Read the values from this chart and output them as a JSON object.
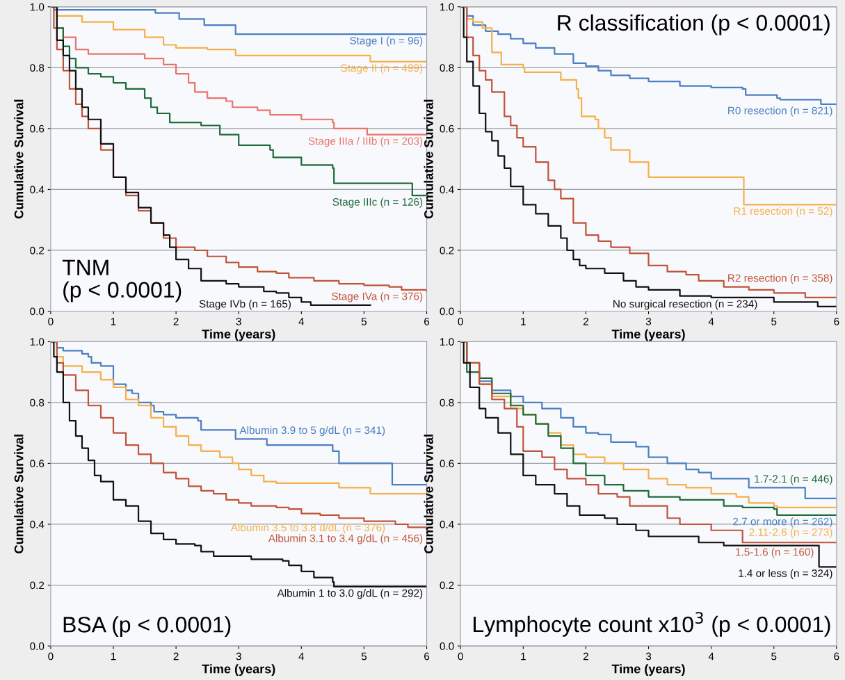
{
  "chart_data": [
    {
      "type": "step",
      "title": "TNM\n(p < 0.0001)",
      "xlabel": "Time (years)",
      "ylabel": "Cumulative Survival",
      "xlim": [
        0,
        6
      ],
      "ylim": [
        0,
        1
      ],
      "xticks": [
        0,
        1,
        2,
        3,
        4,
        5,
        6
      ],
      "yticks": [
        {
          "value": 0,
          "label": "0.0"
        },
        {
          "value": 0.2,
          "label": "0.2"
        },
        {
          "value": 0.4,
          "label": "0.4"
        },
        {
          "value": 0.6,
          "label": "0.6"
        },
        {
          "value": 0.8,
          "label": "0.8"
        },
        {
          "value": 1,
          "label": "1.0"
        }
      ],
      "grid": "y",
      "series": [
        {
          "name": "Stage I (n = 96)",
          "color": "#4a7fc1",
          "x": [
            0,
            0.05,
            1.67,
            2.05,
            2.45,
            2.95,
            6
          ],
          "values": [
            1.0,
            0.99,
            0.98,
            0.96,
            0.94,
            0.91,
            0.91
          ]
        },
        {
          "name": "Stage II (n = 499)",
          "color": "#f5b04a",
          "x": [
            0,
            0.1,
            0.5,
            1.0,
            1.5,
            1.8,
            2.0,
            2.5,
            2.95,
            5.1,
            6
          ],
          "values": [
            1.0,
            0.97,
            0.95,
            0.925,
            0.9,
            0.875,
            0.865,
            0.86,
            0.84,
            0.82,
            0.82
          ]
        },
        {
          "name": "Stage IIIa / IIIb (n = 203)",
          "color": "#e8756a",
          "x": [
            0,
            0.1,
            0.2,
            0.4,
            0.6,
            1.35,
            1.5,
            1.8,
            2.0,
            2.2,
            2.3,
            2.5,
            2.8,
            2.9,
            3.3,
            3.5,
            3.95,
            4.0,
            4.5,
            4.52,
            5.05,
            6
          ],
          "values": [
            1.0,
            0.93,
            0.9,
            0.86,
            0.845,
            0.845,
            0.83,
            0.81,
            0.78,
            0.75,
            0.72,
            0.7,
            0.69,
            0.67,
            0.66,
            0.645,
            0.645,
            0.63,
            0.62,
            0.6,
            0.58,
            0.58
          ]
        },
        {
          "name": "Stage IIIc (n = 126)",
          "color": "#1f6b3a",
          "x": [
            0,
            0.1,
            0.2,
            0.3,
            0.4,
            0.6,
            0.8,
            1.0,
            1.2,
            1.5,
            1.6,
            1.7,
            1.9,
            2.4,
            2.7,
            3.0,
            3.5,
            3.55,
            4.0,
            4.5,
            4.52,
            5.75,
            5.77,
            6
          ],
          "values": [
            1.0,
            0.93,
            0.87,
            0.83,
            0.8,
            0.78,
            0.77,
            0.75,
            0.73,
            0.7,
            0.67,
            0.65,
            0.62,
            0.61,
            0.58,
            0.545,
            0.53,
            0.505,
            0.48,
            0.47,
            0.42,
            0.42,
            0.38,
            0.38
          ]
        },
        {
          "name": "Stage IVa (n = 376)",
          "color": "#c0533a",
          "x": [
            0,
            0.05,
            0.1,
            0.2,
            0.3,
            0.4,
            0.5,
            0.6,
            0.8,
            1.0,
            1.2,
            1.4,
            1.6,
            1.8,
            2.0,
            2.3,
            2.5,
            2.8,
            3.0,
            3.3,
            3.6,
            3.8,
            4.2,
            4.6,
            5.0,
            5.4,
            5.6,
            6
          ],
          "values": [
            1.0,
            0.93,
            0.86,
            0.79,
            0.73,
            0.68,
            0.64,
            0.6,
            0.53,
            0.44,
            0.38,
            0.33,
            0.29,
            0.24,
            0.21,
            0.2,
            0.18,
            0.16,
            0.145,
            0.13,
            0.125,
            0.11,
            0.1,
            0.09,
            0.085,
            0.08,
            0.07,
            0.065
          ]
        },
        {
          "name": "Stage IVb (n = 165)",
          "color": "#111111",
          "x": [
            0,
            0.1,
            0.2,
            0.3,
            0.4,
            0.5,
            0.6,
            0.8,
            1.0,
            1.2,
            1.4,
            1.6,
            1.8,
            1.9,
            2.0,
            2.2,
            2.4,
            2.8,
            3.0,
            3.4,
            3.6,
            3.8,
            4.0,
            4.15,
            5.1
          ],
          "values": [
            1.0,
            0.89,
            0.84,
            0.79,
            0.73,
            0.67,
            0.63,
            0.55,
            0.44,
            0.39,
            0.34,
            0.29,
            0.25,
            0.21,
            0.17,
            0.14,
            0.1,
            0.09,
            0.08,
            0.065,
            0.06,
            0.045,
            0.03,
            0.02,
            0.02
          ]
        }
      ]
    },
    {
      "type": "step",
      "title": "R classification (p < 0.0001)",
      "xlabel": "Time (years)",
      "ylabel": "Cumulative Survival",
      "xlim": [
        0,
        6
      ],
      "ylim": [
        0,
        1
      ],
      "xticks": [
        0,
        1,
        2,
        3,
        4,
        5,
        6
      ],
      "yticks": [
        {
          "value": 0,
          "label": "0.0"
        },
        {
          "value": 0.2,
          "label": "0.2"
        },
        {
          "value": 0.4,
          "label": "0.4"
        },
        {
          "value": 0.6,
          "label": "0.6"
        },
        {
          "value": 0.8,
          "label": "0.8"
        },
        {
          "value": 1,
          "label": "1.0"
        }
      ],
      "grid": "y",
      "series": [
        {
          "name": "R0 resection (n = 821)",
          "color": "#4a7fc1",
          "x": [
            0,
            0.1,
            0.2,
            0.4,
            0.6,
            0.8,
            1.0,
            1.2,
            1.5,
            1.8,
            2.0,
            2.2,
            2.4,
            2.7,
            3.0,
            3.5,
            4.0,
            4.5,
            4.55,
            5.05,
            5.1,
            5.7,
            5.75,
            6
          ],
          "values": [
            1.0,
            0.97,
            0.94,
            0.92,
            0.91,
            0.895,
            0.88,
            0.865,
            0.845,
            0.815,
            0.805,
            0.79,
            0.775,
            0.765,
            0.755,
            0.74,
            0.735,
            0.73,
            0.71,
            0.7,
            0.695,
            0.695,
            0.68,
            0.68
          ]
        },
        {
          "name": "R1 resection (n = 52)",
          "color": "#f5b04a",
          "x": [
            0,
            0.1,
            0.2,
            0.35,
            0.5,
            0.65,
            1.0,
            1.02,
            1.58,
            1.6,
            1.85,
            1.88,
            1.93,
            2.15,
            2.2,
            2.3,
            2.4,
            2.7,
            3.0,
            4.5,
            4.52,
            6
          ],
          "values": [
            1.0,
            0.96,
            0.95,
            0.93,
            0.85,
            0.81,
            0.8,
            0.785,
            0.785,
            0.76,
            0.73,
            0.7,
            0.64,
            0.63,
            0.6,
            0.57,
            0.53,
            0.49,
            0.44,
            0.44,
            0.35,
            0.35
          ]
        },
        {
          "name": "R2 resection (n = 358)",
          "color": "#c0533a",
          "x": [
            0,
            0.1,
            0.2,
            0.3,
            0.4,
            0.5,
            0.7,
            0.8,
            0.9,
            1.0,
            1.2,
            1.4,
            1.5,
            1.6,
            1.8,
            2.0,
            2.2,
            2.4,
            2.7,
            3.0,
            3.3,
            3.6,
            3.8,
            4.2,
            4.6,
            5.0,
            5.5,
            6
          ],
          "values": [
            1.0,
            0.9,
            0.84,
            0.79,
            0.76,
            0.72,
            0.64,
            0.61,
            0.57,
            0.54,
            0.49,
            0.43,
            0.4,
            0.37,
            0.29,
            0.25,
            0.23,
            0.21,
            0.19,
            0.15,
            0.13,
            0.12,
            0.1,
            0.08,
            0.07,
            0.06,
            0.045,
            0.045
          ]
        },
        {
          "name": "No surgical resection (n = 234)",
          "color": "#111111",
          "x": [
            0,
            0.05,
            0.1,
            0.2,
            0.3,
            0.4,
            0.5,
            0.6,
            0.7,
            0.8,
            1.0,
            1.2,
            1.4,
            1.6,
            1.7,
            1.8,
            1.9,
            2.0,
            2.3,
            2.6,
            2.8,
            3.0,
            3.5,
            4.0,
            5.0,
            5.7,
            6
          ],
          "values": [
            1.0,
            0.9,
            0.82,
            0.74,
            0.65,
            0.59,
            0.56,
            0.51,
            0.47,
            0.41,
            0.35,
            0.32,
            0.28,
            0.24,
            0.2,
            0.17,
            0.15,
            0.14,
            0.125,
            0.1,
            0.08,
            0.07,
            0.05,
            0.045,
            0.03,
            0.015,
            0.015
          ]
        }
      ]
    },
    {
      "type": "step",
      "title": "BSA (p < 0.0001)",
      "xlabel": "Time (years)",
      "ylabel": "Cumulative Survival",
      "xlim": [
        0,
        6
      ],
      "ylim": [
        0,
        1
      ],
      "xticks": [
        0,
        1,
        2,
        3,
        4,
        5,
        6
      ],
      "yticks": [
        {
          "value": 0,
          "label": "0.0"
        },
        {
          "value": 0.2,
          "label": "0.2"
        },
        {
          "value": 0.4,
          "label": "0.4"
        },
        {
          "value": 0.6,
          "label": "0.6"
        },
        {
          "value": 0.8,
          "label": "0.8"
        },
        {
          "value": 1,
          "label": "1.0"
        }
      ],
      "grid": "y",
      "series": [
        {
          "name": "Albumin 3.9 to 5 g/dL (n = 341)",
          "color": "#4a7fc1",
          "x": [
            0,
            0.1,
            0.2,
            0.5,
            0.6,
            0.65,
            0.8,
            1.0,
            1.2,
            1.3,
            1.4,
            1.6,
            1.65,
            1.8,
            2.0,
            2.35,
            2.4,
            2.95,
            3.45,
            4.5,
            4.6,
            5.45,
            6
          ],
          "values": [
            1.0,
            0.98,
            0.97,
            0.96,
            0.95,
            0.93,
            0.92,
            0.86,
            0.84,
            0.83,
            0.8,
            0.79,
            0.77,
            0.76,
            0.75,
            0.74,
            0.71,
            0.68,
            0.66,
            0.64,
            0.6,
            0.53,
            0.53
          ]
        },
        {
          "name": "Albumin 3.5 to 3.8 d/dL (n = 376)",
          "color": "#f5b04a",
          "x": [
            0,
            0.1,
            0.2,
            0.5,
            0.8,
            1.0,
            1.2,
            1.4,
            1.6,
            1.8,
            2.0,
            2.2,
            2.4,
            2.7,
            2.9,
            3.0,
            3.2,
            3.4,
            3.6,
            4.5,
            4.6,
            5.1,
            6
          ],
          "values": [
            1.0,
            0.95,
            0.92,
            0.9,
            0.875,
            0.85,
            0.81,
            0.79,
            0.75,
            0.72,
            0.69,
            0.66,
            0.64,
            0.62,
            0.6,
            0.58,
            0.56,
            0.54,
            0.535,
            0.535,
            0.52,
            0.5,
            0.5
          ]
        },
        {
          "name": "Albumin 3.1 to 3.4 g/dL (n = 456)",
          "color": "#c0533a",
          "x": [
            0,
            0.1,
            0.2,
            0.4,
            0.6,
            0.8,
            1.0,
            1.2,
            1.4,
            1.6,
            1.8,
            2.0,
            2.2,
            2.4,
            2.6,
            2.8,
            3.0,
            3.2,
            3.6,
            3.8,
            4.0,
            4.3,
            4.6,
            5.0,
            5.5,
            5.7,
            6
          ],
          "values": [
            1.0,
            0.93,
            0.89,
            0.84,
            0.79,
            0.75,
            0.7,
            0.66,
            0.63,
            0.6,
            0.57,
            0.55,
            0.525,
            0.51,
            0.5,
            0.48,
            0.47,
            0.46,
            0.455,
            0.45,
            0.435,
            0.43,
            0.42,
            0.41,
            0.4,
            0.39,
            0.38
          ]
        },
        {
          "name": "Albumin 1 to 3.0 g/dL (n = 292)",
          "color": "#111111",
          "x": [
            0,
            0.05,
            0.1,
            0.2,
            0.3,
            0.4,
            0.5,
            0.6,
            0.7,
            0.8,
            1.0,
            1.2,
            1.4,
            1.6,
            1.8,
            2.0,
            2.3,
            2.4,
            2.6,
            3.0,
            3.2,
            3.7,
            3.8,
            4.0,
            4.2,
            4.5,
            4.52,
            6
          ],
          "values": [
            1.0,
            0.95,
            0.9,
            0.8,
            0.74,
            0.69,
            0.65,
            0.61,
            0.56,
            0.54,
            0.48,
            0.46,
            0.41,
            0.37,
            0.35,
            0.335,
            0.33,
            0.31,
            0.295,
            0.295,
            0.285,
            0.28,
            0.265,
            0.245,
            0.225,
            0.21,
            0.195,
            0.195
          ]
        }
      ]
    },
    {
      "type": "step",
      "title": "Lymphocyte count x10$^{3}$ (p < 0.0001)",
      "xlabel": "Time (years)",
      "ylabel": "Cumulative Survival",
      "xlim": [
        0,
        6
      ],
      "ylim": [
        0,
        1
      ],
      "xticks": [
        0,
        1,
        2,
        3,
        4,
        5,
        6
      ],
      "yticks": [
        {
          "value": 0,
          "label": "0.0"
        },
        {
          "value": 0.2,
          "label": "0.2"
        },
        {
          "value": 0.4,
          "label": "0.4"
        },
        {
          "value": 0.6,
          "label": "0.6"
        },
        {
          "value": 0.8,
          "label": "0.8"
        },
        {
          "value": 1,
          "label": "1.0"
        }
      ],
      "grid": "y",
      "series": [
        {
          "name": "2.7 or more (n = 262)",
          "color": "#4a7fc1",
          "x": [
            0,
            0.1,
            0.3,
            0.5,
            0.8,
            1.0,
            1.3,
            1.6,
            1.8,
            2.0,
            2.2,
            2.4,
            2.8,
            3.0,
            3.3,
            3.6,
            3.8,
            4.0,
            4.5,
            4.6,
            5.45,
            5.5,
            6
          ],
          "values": [
            1.0,
            0.93,
            0.87,
            0.84,
            0.82,
            0.8,
            0.78,
            0.75,
            0.72,
            0.7,
            0.695,
            0.67,
            0.655,
            0.62,
            0.6,
            0.58,
            0.57,
            0.55,
            0.55,
            0.52,
            0.52,
            0.485,
            0.485
          ]
        },
        {
          "name": "2.11-2.6 (n = 273)",
          "color": "#f5b04a",
          "x": [
            0,
            0.1,
            0.3,
            0.5,
            0.8,
            1.0,
            1.2,
            1.4,
            1.6,
            1.8,
            2.0,
            2.3,
            2.6,
            3.0,
            3.3,
            3.6,
            4.0,
            4.4,
            4.6,
            5.0,
            5.05,
            6
          ],
          "values": [
            1.0,
            0.93,
            0.86,
            0.82,
            0.78,
            0.76,
            0.73,
            0.7,
            0.66,
            0.63,
            0.62,
            0.6,
            0.58,
            0.55,
            0.53,
            0.52,
            0.5,
            0.49,
            0.47,
            0.46,
            0.455,
            0.455
          ]
        },
        {
          "name": "1.7-2.1 (n = 446)",
          "color": "#1f6b3a",
          "x": [
            0,
            0.1,
            0.3,
            0.5,
            0.8,
            1.0,
            1.2,
            1.4,
            1.6,
            1.8,
            2.0,
            2.3,
            2.6,
            3.0,
            3.5,
            4.0,
            4.2,
            4.5,
            5.0,
            5.05,
            6
          ],
          "values": [
            1.0,
            0.9,
            0.88,
            0.83,
            0.79,
            0.76,
            0.73,
            0.69,
            0.65,
            0.6,
            0.56,
            0.53,
            0.51,
            0.49,
            0.48,
            0.48,
            0.46,
            0.455,
            0.45,
            0.43,
            0.43
          ]
        },
        {
          "name": "1.5-1.6 (n = 160)",
          "color": "#c0533a",
          "x": [
            0,
            0.1,
            0.3,
            0.5,
            0.7,
            0.9,
            1.0,
            1.3,
            1.5,
            1.7,
            2.0,
            2.2,
            2.5,
            2.7,
            3.2,
            3.3,
            3.5,
            4.0,
            4.5,
            6
          ],
          "values": [
            1.0,
            0.93,
            0.86,
            0.81,
            0.78,
            0.72,
            0.64,
            0.62,
            0.58,
            0.55,
            0.53,
            0.5,
            0.49,
            0.46,
            0.46,
            0.42,
            0.4,
            0.38,
            0.34,
            0.34
          ]
        },
        {
          "name": "1.4 or less (n = 324)",
          "color": "#111111",
          "x": [
            0,
            0.05,
            0.15,
            0.3,
            0.4,
            0.6,
            0.8,
            1.0,
            1.2,
            1.5,
            1.7,
            1.9,
            2.3,
            2.5,
            2.8,
            3.0,
            3.6,
            3.8,
            4.2,
            5.7,
            5.72,
            6
          ],
          "values": [
            1.0,
            0.93,
            0.85,
            0.78,
            0.75,
            0.7,
            0.63,
            0.56,
            0.53,
            0.5,
            0.46,
            0.43,
            0.42,
            0.4,
            0.38,
            0.36,
            0.36,
            0.34,
            0.33,
            0.33,
            0.26,
            0.26
          ]
        }
      ]
    }
  ]
}
